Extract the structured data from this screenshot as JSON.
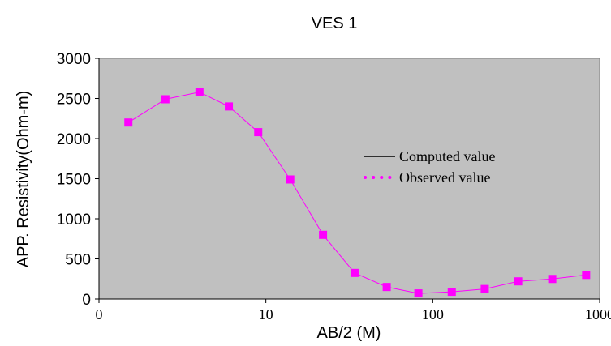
{
  "chart_data": {
    "type": "line",
    "title": "VES 1",
    "xlabel": "AB/2 (M)",
    "ylabel": "APP. Resistivity(Ohm-m)",
    "x_scale": "log",
    "x_ticks": [
      "0",
      "10",
      "100",
      "1000"
    ],
    "y_ticks": [
      "0",
      "500",
      "1000",
      "1500",
      "2000",
      "2500",
      "3000"
    ],
    "xlim": [
      1,
      1000
    ],
    "ylim": [
      0,
      3000
    ],
    "grid": false,
    "legend_position": "right",
    "plot_background": "#c0c0c0",
    "series": [
      {
        "name": "Computed value",
        "color": "#000000",
        "style": "solid",
        "x": [],
        "y": []
      },
      {
        "name": "Observed value",
        "color": "#ff00ff",
        "style": "dotted",
        "marker": "square",
        "x": [
          1.5,
          2.5,
          4,
          6,
          9,
          14,
          22,
          34,
          53,
          82,
          130,
          205,
          325,
          520,
          830
        ],
        "y": [
          2200,
          2490,
          2580,
          2400,
          2080,
          1490,
          800,
          325,
          150,
          70,
          90,
          125,
          220,
          250,
          300
        ]
      }
    ]
  }
}
